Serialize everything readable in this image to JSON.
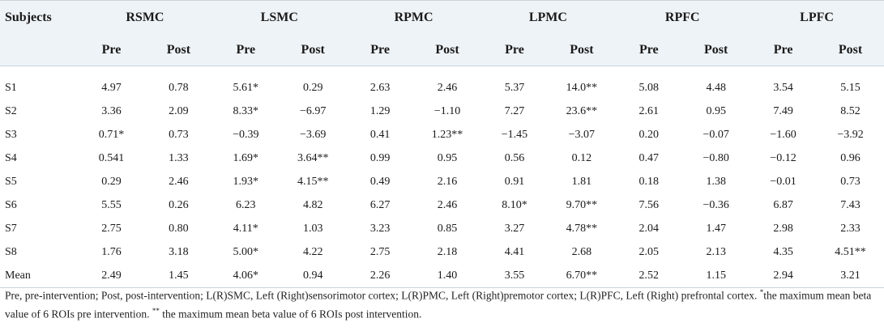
{
  "header": {
    "subjects": "Subjects",
    "groups": [
      "RSMC",
      "LSMC",
      "RPMC",
      "LPMC",
      "RPFC",
      "LPFC"
    ],
    "pre": "Pre",
    "post": "Post"
  },
  "rows": [
    {
      "subject": "S1",
      "values": [
        "4.97",
        "0.78",
        "5.61*",
        "0.29",
        "2.63",
        "2.46",
        "5.37",
        "14.0**",
        "5.08",
        "4.48",
        "3.54",
        "5.15"
      ]
    },
    {
      "subject": "S2",
      "values": [
        "3.36",
        "2.09",
        "8.33*",
        "−6.97",
        "1.29",
        "−1.10",
        "7.27",
        "23.6**",
        "2.61",
        "0.95",
        "7.49",
        "8.52"
      ]
    },
    {
      "subject": "S3",
      "values": [
        "0.71*",
        "0.73",
        "−0.39",
        "−3.69",
        "0.41",
        "1.23**",
        "−1.45",
        "−3.07",
        "0.20",
        "−0.07",
        "−1.60",
        "−3.92"
      ]
    },
    {
      "subject": "S4",
      "values": [
        "0.541",
        "1.33",
        "1.69*",
        "3.64**",
        "0.99",
        "0.95",
        "0.56",
        "0.12",
        "0.47",
        "−0.80",
        "−0.12",
        "0.96"
      ]
    },
    {
      "subject": "S5",
      "values": [
        "0.29",
        "2.46",
        "1.93*",
        "4.15**",
        "0.49",
        "2.16",
        "0.91",
        "1.81",
        "0.18",
        "1.38",
        "−0.01",
        "0.73"
      ]
    },
    {
      "subject": "S6",
      "values": [
        "5.55",
        "0.26",
        "6.23",
        "4.82",
        "6.27",
        "2.46",
        "8.10*",
        "9.70**",
        "7.56",
        "−0.36",
        "6.87",
        "7.43"
      ]
    },
    {
      "subject": "S7",
      "values": [
        "2.75",
        "0.80",
        "4.11*",
        "1.03",
        "3.23",
        "0.85",
        "3.27",
        "4.78**",
        "2.04",
        "1.47",
        "2.98",
        "2.33"
      ]
    },
    {
      "subject": "S8",
      "values": [
        "1.76",
        "3.18",
        "5.00*",
        "4.22",
        "2.75",
        "2.18",
        "4.41",
        "2.68",
        "2.05",
        "2.13",
        "4.35",
        "4.51**"
      ]
    },
    {
      "subject": "Mean",
      "values": [
        "2.49",
        "1.45",
        "4.06*",
        "0.94",
        "2.26",
        "1.40",
        "3.55",
        "6.70**",
        "2.52",
        "1.15",
        "2.94",
        "3.21"
      ]
    }
  ],
  "footnote": {
    "text": "Pre, pre-intervention; Post, post-intervention; L(R)SMC, Left (Right)sensorimotor cortex; L(R)PMC, Left (Right)premotor cortex; L(R)PFC, Left (Right) prefrontal cortex.",
    "mark1": "*",
    "note1": "the maximum mean beta value of 6 ROIs pre intervention.",
    "mark2": "**",
    "note2": "the maximum mean beta value of 6 ROIs post intervention."
  }
}
